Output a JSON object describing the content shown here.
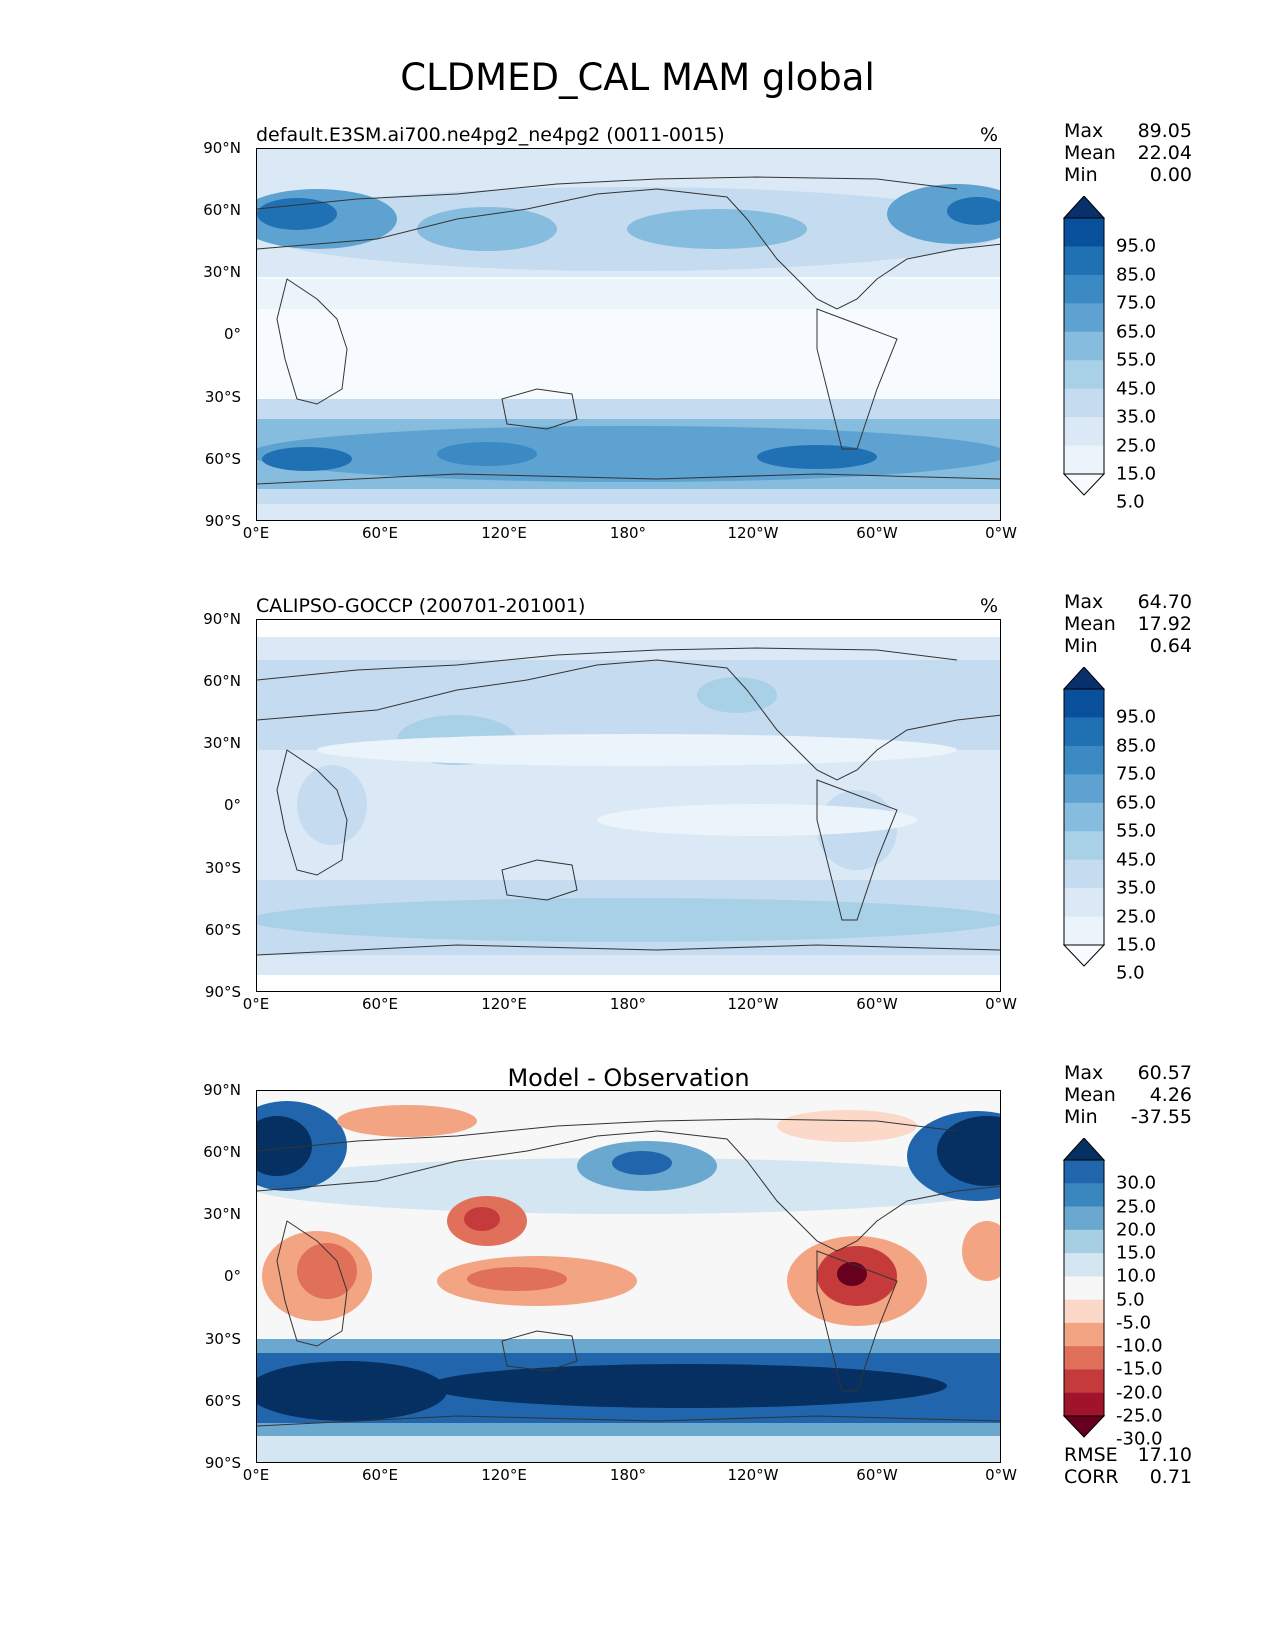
{
  "title": "CLDMED_CAL MAM global",
  "lat_labels": [
    "90°N",
    "60°N",
    "30°N",
    "0°",
    "30°S",
    "60°S",
    "90°S"
  ],
  "lon_labels": [
    "0°E",
    "60°E",
    "120°E",
    "180°",
    "120°W",
    "60°W",
    "0°W"
  ],
  "panels": [
    {
      "subtitle": "default.E3SM.ai700.ne4pg2_ne4pg2 (0011-0015)",
      "units": "%",
      "stats": [
        {
          "label": "Max",
          "value": "89.05"
        },
        {
          "label": "Mean",
          "value": "22.04"
        },
        {
          "label": "Min",
          "value": "0.00"
        }
      ],
      "colorbar": {
        "levels": [
          "95.0",
          "85.0",
          "75.0",
          "65.0",
          "55.0",
          "45.0",
          "35.0",
          "25.0",
          "15.0",
          "5.0"
        ],
        "colors": [
          "#08306b",
          "#08509b",
          "#2070b4",
          "#3c8ac3",
          "#5da2d0",
          "#86bcdd",
          "#a8d1e7",
          "#c5dbef",
          "#dbe9f6",
          "#ebf3fb",
          "#f7fbff"
        ]
      }
    },
    {
      "subtitle": "CALIPSO-GOCCP (200701-201001)",
      "units": "%",
      "stats": [
        {
          "label": "Max",
          "value": "64.70"
        },
        {
          "label": "Mean",
          "value": "17.92"
        },
        {
          "label": "Min",
          "value": "0.64"
        }
      ],
      "colorbar": {
        "levels": [
          "95.0",
          "85.0",
          "75.0",
          "65.0",
          "55.0",
          "45.0",
          "35.0",
          "25.0",
          "15.0",
          "5.0"
        ],
        "colors": [
          "#08306b",
          "#08509b",
          "#2070b4",
          "#3c8ac3",
          "#5da2d0",
          "#86bcdd",
          "#a8d1e7",
          "#c5dbef",
          "#dbe9f6",
          "#ebf3fb",
          "#f7fbff"
        ]
      }
    },
    {
      "subtitle": "Model - Observation",
      "units": "",
      "stats": [
        {
          "label": "Max",
          "value": "60.57"
        },
        {
          "label": "Mean",
          "value": "4.26"
        },
        {
          "label": "Min",
          "value": "-37.55"
        }
      ],
      "colorbar": {
        "levels": [
          "30.0",
          "25.0",
          "20.0",
          "15.0",
          "10.0",
          "5.0",
          "-5.0",
          "-10.0",
          "-15.0",
          "-20.0",
          "-25.0",
          "-30.0"
        ],
        "colors": [
          "#053061",
          "#2166ac",
          "#3a87bf",
          "#6aa8d0",
          "#a7cfe4",
          "#d4e6f1",
          "#f7f7f7",
          "#fbd8c7",
          "#f3a483",
          "#e0705a",
          "#c53b3b",
          "#a1132a",
          "#67001f"
        ]
      },
      "bottom_stats": [
        {
          "label": "RMSE",
          "value": "17.10"
        },
        {
          "label": "CORR",
          "value": "0.71"
        }
      ]
    }
  ]
}
